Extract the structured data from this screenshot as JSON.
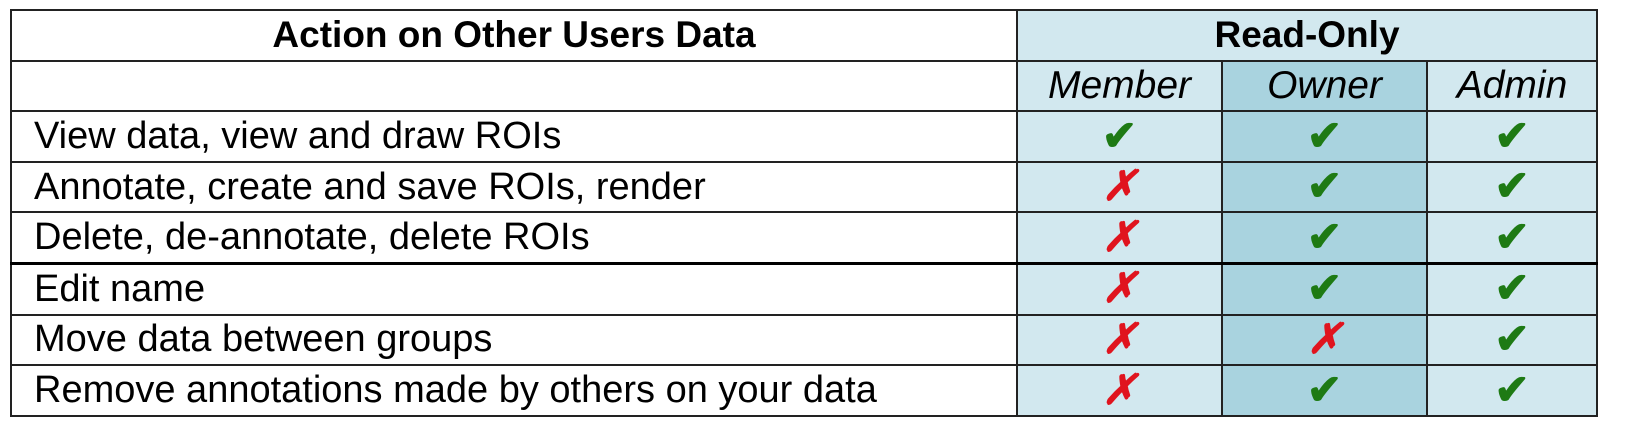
{
  "header": {
    "action_title": "Action on Other Users Data",
    "group_title": "Read-Only",
    "roles": [
      "Member",
      "Owner",
      "Admin"
    ]
  },
  "symbols": {
    "yes": "✔",
    "no": "✗"
  },
  "colors": {
    "yes": "#1e7a14",
    "no": "#e0141e",
    "role_light": "#d2e8ef",
    "role_dark": "#a9d3df"
  },
  "rows": [
    {
      "action": "View data, view and draw ROIs",
      "member": "✔",
      "owner": "✔",
      "admin": "✔"
    },
    {
      "action": "Annotate, create and save ROIs, render",
      "member": "✗",
      "owner": "✔",
      "admin": "✔"
    },
    {
      "action": "Delete, de-annotate, delete ROIs",
      "member": "✗",
      "owner": "✔",
      "admin": "✔"
    },
    {
      "action": "Edit name",
      "member": "✗",
      "owner": "✔",
      "admin": "✔"
    },
    {
      "action": "Move data between groups",
      "member": "✗",
      "owner": "✗",
      "admin": "✔"
    },
    {
      "action": "Remove annotations made by others on your data",
      "member": "✗",
      "owner": "✔",
      "admin": "✔"
    }
  ]
}
